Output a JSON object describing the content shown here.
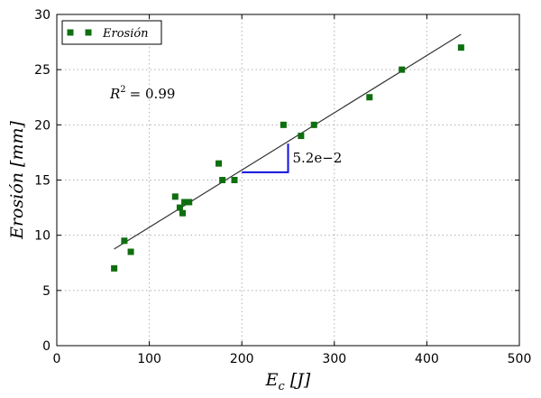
{
  "chart_data": {
    "type": "scatter",
    "xlabel": "E_c [J]",
    "ylabel": "Erosión [mm]",
    "xlim": [
      0,
      500
    ],
    "ylim": [
      0,
      30
    ],
    "xticks": [
      0,
      100,
      200,
      300,
      400,
      500
    ],
    "yticks": [
      0,
      5,
      10,
      15,
      20,
      25,
      30
    ],
    "grid": true,
    "legend_position": "top-left",
    "series": [
      {
        "name": "Erosión",
        "color": "#0f6e0f",
        "marker": "square",
        "points": [
          [
            62,
            7
          ],
          [
            73,
            9.5
          ],
          [
            80,
            8.5
          ],
          [
            128,
            13.5
          ],
          [
            133,
            12.5
          ],
          [
            136,
            12
          ],
          [
            138,
            13
          ],
          [
            143,
            13
          ],
          [
            175,
            16.5
          ],
          [
            179,
            15
          ],
          [
            192,
            15
          ],
          [
            245,
            20
          ],
          [
            264,
            19
          ],
          [
            278,
            20
          ],
          [
            338,
            22.5
          ],
          [
            373,
            25
          ],
          [
            437,
            27
          ]
        ]
      }
    ],
    "fit_line": {
      "x": [
        62,
        437
      ],
      "y": [
        8.75,
        28.2
      ],
      "color": "#333333"
    },
    "annotations": {
      "r2_label": "R",
      "r2_sup": "2",
      "r2_value": "= 0.99",
      "slope_label": "5.2e−2",
      "slope_triangle": {
        "x": [
          200,
          250
        ],
        "y": [
          15.7,
          18.3
        ],
        "color": "#1010dd"
      }
    }
  }
}
